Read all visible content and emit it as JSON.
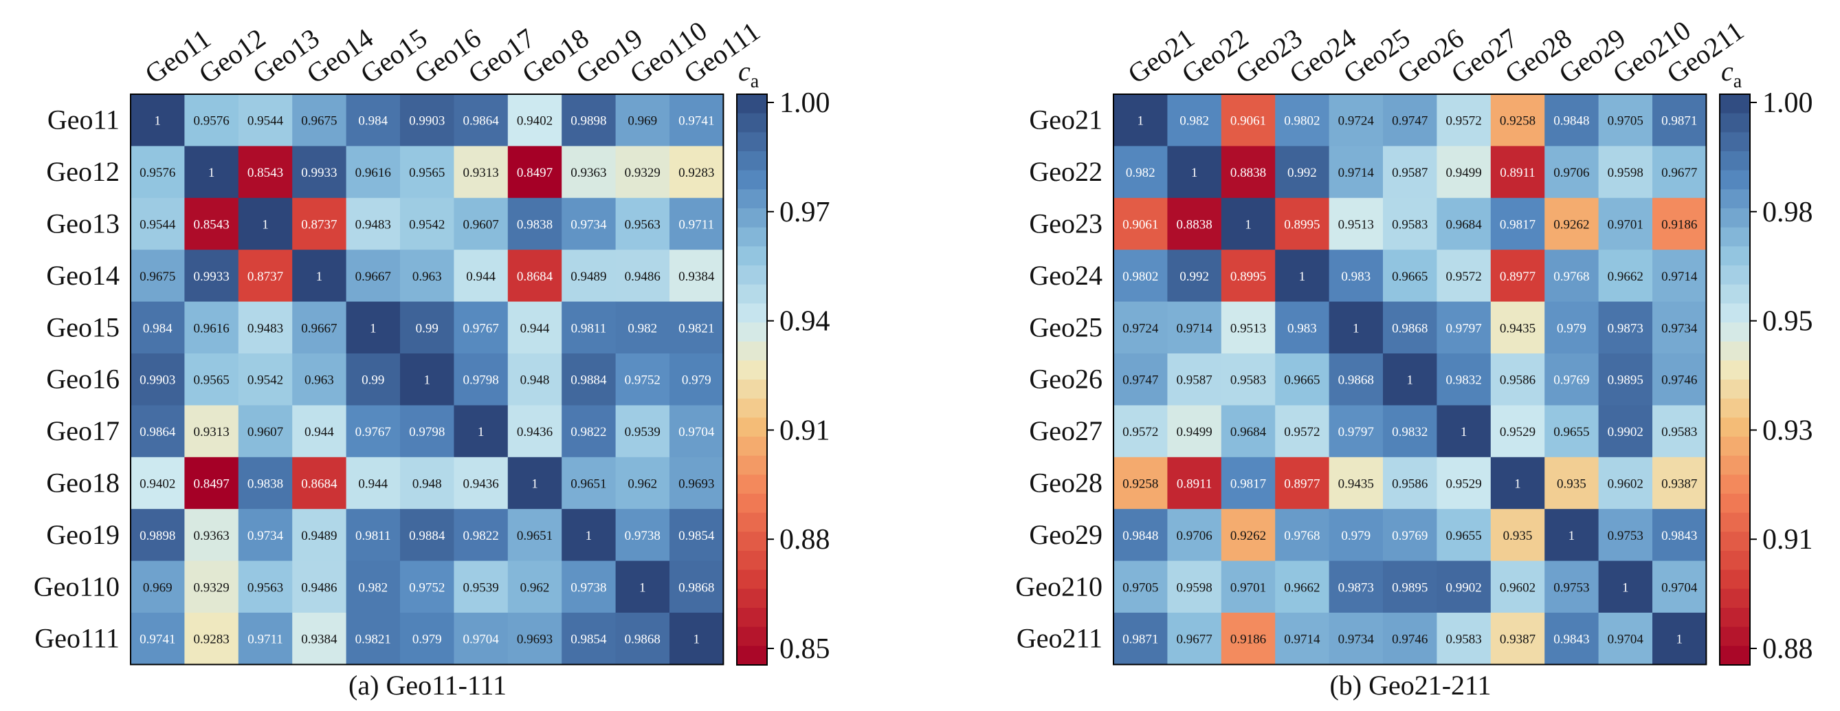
{
  "colorbar_symbol": "c",
  "colorbar_subscript": "a",
  "chart_data": [
    {
      "type": "heatmap",
      "caption": "(a) Geo11-111",
      "labels": [
        "Geo11",
        "Geo12",
        "Geo13",
        "Geo14",
        "Geo15",
        "Geo16",
        "Geo17",
        "Geo18",
        "Geo19",
        "Geo110",
        "Geo111"
      ],
      "values": [
        [
          "1",
          "0.9576",
          "0.9544",
          "0.9675",
          "0.984",
          "0.9903",
          "0.9864",
          "0.9402",
          "0.9898",
          "0.969",
          "0.9741"
        ],
        [
          "0.9576",
          "1",
          "0.8543",
          "0.9933",
          "0.9616",
          "0.9565",
          "0.9313",
          "0.8497",
          "0.9363",
          "0.9329",
          "0.9283"
        ],
        [
          "0.9544",
          "0.8543",
          "1",
          "0.8737",
          "0.9483",
          "0.9542",
          "0.9607",
          "0.9838",
          "0.9734",
          "0.9563",
          "0.9711"
        ],
        [
          "0.9675",
          "0.9933",
          "0.8737",
          "1",
          "0.9667",
          "0.963",
          "0.944",
          "0.8684",
          "0.9489",
          "0.9486",
          "0.9384"
        ],
        [
          "0.984",
          "0.9616",
          "0.9483",
          "0.9667",
          "1",
          "0.99",
          "0.9767",
          "0.944",
          "0.9811",
          "0.982",
          "0.9821"
        ],
        [
          "0.9903",
          "0.9565",
          "0.9542",
          "0.963",
          "0.99",
          "1",
          "0.9798",
          "0.948",
          "0.9884",
          "0.9752",
          "0.979"
        ],
        [
          "0.9864",
          "0.9313",
          "0.9607",
          "0.944",
          "0.9767",
          "0.9798",
          "1",
          "0.9436",
          "0.9822",
          "0.9539",
          "0.9704"
        ],
        [
          "0.9402",
          "0.8497",
          "0.9838",
          "0.8684",
          "0.944",
          "0.948",
          "0.9436",
          "1",
          "0.9651",
          "0.962",
          "0.9693"
        ],
        [
          "0.9898",
          "0.9363",
          "0.9734",
          "0.9489",
          "0.9811",
          "0.9884",
          "0.9822",
          "0.9651",
          "1",
          "0.9738",
          "0.9854"
        ],
        [
          "0.969",
          "0.9329",
          "0.9563",
          "0.9486",
          "0.982",
          "0.9752",
          "0.9539",
          "0.962",
          "0.9738",
          "1",
          "0.9868"
        ],
        [
          "0.9741",
          "0.9283",
          "0.9711",
          "0.9384",
          "0.9821",
          "0.979",
          "0.9704",
          "0.9693",
          "0.9854",
          "0.9868",
          "1"
        ]
      ],
      "color_range": [
        0.85,
        1.0
      ],
      "colorbar_ticks": [
        "1.00",
        "0.97",
        "0.94",
        "0.91",
        "0.88",
        "0.85"
      ]
    },
    {
      "type": "heatmap",
      "caption": "(b) Geo21-211",
      "labels": [
        "Geo21",
        "Geo22",
        "Geo23",
        "Geo24",
        "Geo25",
        "Geo26",
        "Geo27",
        "Geo28",
        "Geo29",
        "Geo210",
        "Geo211"
      ],
      "values": [
        [
          "1",
          "0.982",
          "0.9061",
          "0.9802",
          "0.9724",
          "0.9747",
          "0.9572",
          "0.9258",
          "0.9848",
          "0.9705",
          "0.9871"
        ],
        [
          "0.982",
          "1",
          "0.8838",
          "0.992",
          "0.9714",
          "0.9587",
          "0.9499",
          "0.8911",
          "0.9706",
          "0.9598",
          "0.9677"
        ],
        [
          "0.9061",
          "0.8838",
          "1",
          "0.8995",
          "0.9513",
          "0.9583",
          "0.9684",
          "0.9817",
          "0.9262",
          "0.9701",
          "0.9186"
        ],
        [
          "0.9802",
          "0.992",
          "0.8995",
          "1",
          "0.983",
          "0.9665",
          "0.9572",
          "0.8977",
          "0.9768",
          "0.9662",
          "0.9714"
        ],
        [
          "0.9724",
          "0.9714",
          "0.9513",
          "0.983",
          "1",
          "0.9868",
          "0.9797",
          "0.9435",
          "0.979",
          "0.9873",
          "0.9734"
        ],
        [
          "0.9747",
          "0.9587",
          "0.9583",
          "0.9665",
          "0.9868",
          "1",
          "0.9832",
          "0.9586",
          "0.9769",
          "0.9895",
          "0.9746"
        ],
        [
          "0.9572",
          "0.9499",
          "0.9684",
          "0.9572",
          "0.9797",
          "0.9832",
          "1",
          "0.9529",
          "0.9655",
          "0.9902",
          "0.9583"
        ],
        [
          "0.9258",
          "0.8911",
          "0.9817",
          "0.8977",
          "0.9435",
          "0.9586",
          "0.9529",
          "1",
          "0.935",
          "0.9602",
          "0.9387"
        ],
        [
          "0.9848",
          "0.9706",
          "0.9262",
          "0.9768",
          "0.979",
          "0.9769",
          "0.9655",
          "0.935",
          "1",
          "0.9753",
          "0.9843"
        ],
        [
          "0.9705",
          "0.9598",
          "0.9701",
          "0.9662",
          "0.9873",
          "0.9895",
          "0.9902",
          "0.9602",
          "0.9753",
          "1",
          "0.9704"
        ],
        [
          "0.9871",
          "0.9677",
          "0.9186",
          "0.9714",
          "0.9734",
          "0.9746",
          "0.9583",
          "0.9387",
          "0.9843",
          "0.9704",
          "1"
        ]
      ],
      "color_range": [
        0.88,
        1.0
      ],
      "colorbar_ticks": [
        "1.00",
        "0.98",
        "0.95",
        "0.93",
        "0.91",
        "0.88"
      ]
    }
  ]
}
